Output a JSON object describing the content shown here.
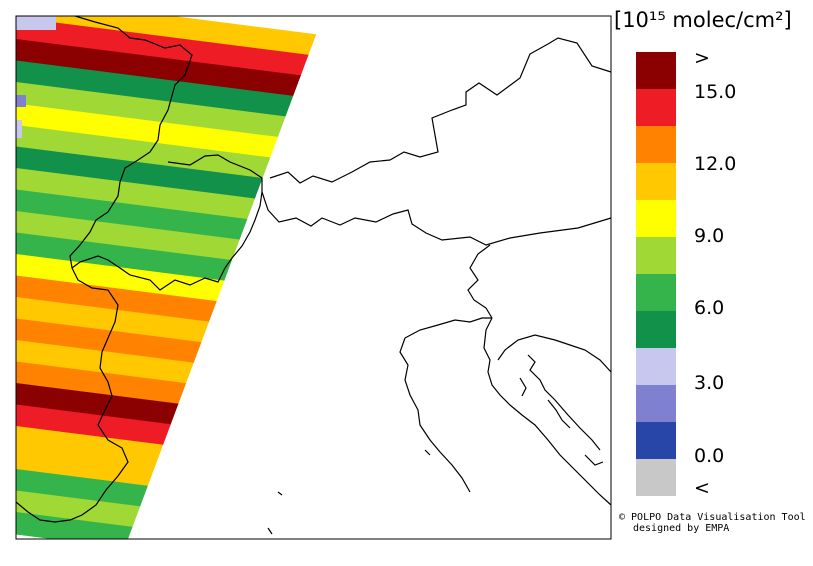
{
  "legend": {
    "title": "[10¹⁵ molec/cm²]",
    "colors": [
      "#8b0000",
      "#ee1c25",
      "#ff8200",
      "#ffc800",
      "#ffff00",
      "#a0d836",
      "#34b44a",
      "#12914b",
      "#c8c8ee",
      "#8080d0",
      "#2846a8",
      "#c8c8c8"
    ],
    "ticks": [
      ">",
      "15.0",
      "12.0",
      "9.0",
      "6.0",
      "3.0",
      "0.0",
      "<"
    ]
  },
  "credit": {
    "line1": "© POLPO Data Visualisation Tool",
    "line2": "designed by EMPA"
  },
  "swath": {
    "bands": [
      "#ffc800",
      "#ee1c25",
      "#8b0000",
      "#12914b",
      "#a0d836",
      "#ffff00",
      "#a0d836",
      "#12914b",
      "#a0d836",
      "#34b44a",
      "#a0d836",
      "#34b44a",
      "#ffff00",
      "#ff8200",
      "#ffc800",
      "#ff8200",
      "#ffc800",
      "#ff8200",
      "#8b0000",
      "#ee1c25",
      "#ffc800",
      "#ffc800",
      "#34b44a",
      "#a0d836",
      "#34b44a"
    ]
  }
}
